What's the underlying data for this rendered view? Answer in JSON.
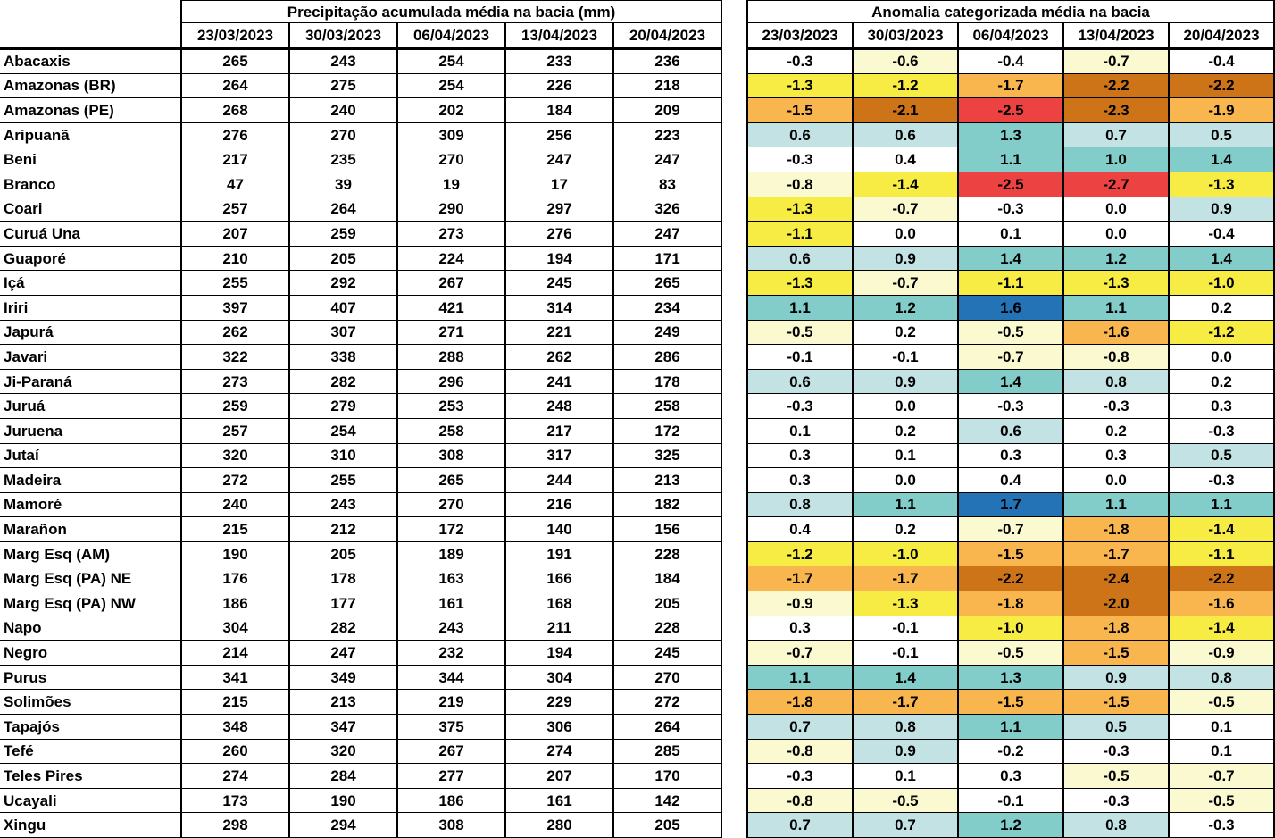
{
  "chart_data": {
    "type": "table",
    "precip_table": {
      "title": "Precipitação acumulada média na bacia (mm)",
      "columns": [
        "23/03/2023",
        "30/03/2023",
        "06/04/2023",
        "13/04/2023",
        "20/04/2023"
      ]
    },
    "anomaly_table": {
      "title": "Anomalia categorizada média na bacia",
      "columns": [
        "23/03/2023",
        "30/03/2023",
        "06/04/2023",
        "13/04/2023",
        "20/04/2023"
      ]
    },
    "basins": [
      {
        "name": "Abacaxis",
        "precip": [
          265,
          243,
          254,
          233,
          236
        ],
        "anomaly": [
          "-0.3",
          "-0.6",
          "-0.4",
          "-0.7",
          "-0.4"
        ]
      },
      {
        "name": "Amazonas (BR)",
        "precip": [
          264,
          275,
          254,
          226,
          218
        ],
        "anomaly": [
          "-1.3",
          "-1.2",
          "-1.7",
          "-2.2",
          "-2.2"
        ]
      },
      {
        "name": "Amazonas (PE)",
        "precip": [
          268,
          240,
          202,
          184,
          209
        ],
        "anomaly": [
          "-1.5",
          "-2.1",
          "-2.5",
          "-2.3",
          "-1.9"
        ]
      },
      {
        "name": "Aripuanã",
        "precip": [
          276,
          270,
          309,
          256,
          223
        ],
        "anomaly": [
          "0.6",
          "0.6",
          "1.3",
          "0.7",
          "0.5"
        ]
      },
      {
        "name": "Beni",
        "precip": [
          217,
          235,
          270,
          247,
          247
        ],
        "anomaly": [
          "-0.3",
          "0.4",
          "1.1",
          "1.0",
          "1.4"
        ]
      },
      {
        "name": "Branco",
        "precip": [
          47,
          39,
          19,
          17,
          83
        ],
        "anomaly": [
          "-0.8",
          "-1.4",
          "-2.5",
          "-2.7",
          "-1.3"
        ]
      },
      {
        "name": "Coari",
        "precip": [
          257,
          264,
          290,
          297,
          326
        ],
        "anomaly": [
          "-1.3",
          "-0.7",
          "-0.3",
          "0.0",
          "0.9"
        ]
      },
      {
        "name": "Curuá Una",
        "precip": [
          207,
          259,
          273,
          276,
          247
        ],
        "anomaly": [
          "-1.1",
          "0.0",
          "0.1",
          "0.0",
          "-0.4"
        ]
      },
      {
        "name": "Guaporé",
        "precip": [
          210,
          205,
          224,
          194,
          171
        ],
        "anomaly": [
          "0.6",
          "0.9",
          "1.4",
          "1.2",
          "1.4"
        ]
      },
      {
        "name": "Içá",
        "precip": [
          255,
          292,
          267,
          245,
          265
        ],
        "anomaly": [
          "-1.3",
          "-0.7",
          "-1.1",
          "-1.3",
          "-1.0"
        ]
      },
      {
        "name": "Iriri",
        "precip": [
          397,
          407,
          421,
          314,
          234
        ],
        "anomaly": [
          "1.1",
          "1.2",
          "1.6",
          "1.1",
          "0.2"
        ]
      },
      {
        "name": "Japurá",
        "precip": [
          262,
          307,
          271,
          221,
          249
        ],
        "anomaly": [
          "-0.5",
          "0.2",
          "-0.5",
          "-1.6",
          "-1.2"
        ]
      },
      {
        "name": "Javari",
        "precip": [
          322,
          338,
          288,
          262,
          286
        ],
        "anomaly": [
          "-0.1",
          "-0.1",
          "-0.7",
          "-0.8",
          "0.0"
        ]
      },
      {
        "name": "Ji-Paraná",
        "precip": [
          273,
          282,
          296,
          241,
          178
        ],
        "anomaly": [
          "0.6",
          "0.9",
          "1.4",
          "0.8",
          "0.2"
        ]
      },
      {
        "name": "Juruá",
        "precip": [
          259,
          279,
          253,
          248,
          258
        ],
        "anomaly": [
          "-0.3",
          "0.0",
          "-0.3",
          "-0.3",
          "0.3"
        ]
      },
      {
        "name": "Juruena",
        "precip": [
          257,
          254,
          258,
          217,
          172
        ],
        "anomaly": [
          "0.1",
          "0.2",
          "0.6",
          "0.2",
          "-0.3"
        ]
      },
      {
        "name": "Jutaí",
        "precip": [
          320,
          310,
          308,
          317,
          325
        ],
        "anomaly": [
          "0.3",
          "0.1",
          "0.3",
          "0.3",
          "0.5"
        ]
      },
      {
        "name": "Madeira",
        "precip": [
          272,
          255,
          265,
          244,
          213
        ],
        "anomaly": [
          "0.3",
          "0.0",
          "0.4",
          "0.0",
          "-0.3"
        ]
      },
      {
        "name": "Mamoré",
        "precip": [
          240,
          243,
          270,
          216,
          182
        ],
        "anomaly": [
          "0.8",
          "1.1",
          "1.7",
          "1.1",
          "1.1"
        ]
      },
      {
        "name": "Marañon",
        "precip": [
          215,
          212,
          172,
          140,
          156
        ],
        "anomaly": [
          "0.4",
          "0.2",
          "-0.7",
          "-1.8",
          "-1.4"
        ]
      },
      {
        "name": "Marg Esq (AM)",
        "precip": [
          190,
          205,
          189,
          191,
          228
        ],
        "anomaly": [
          "-1.2",
          "-1.0",
          "-1.5",
          "-1.7",
          "-1.1"
        ]
      },
      {
        "name": "Marg Esq (PA) NE",
        "precip": [
          176,
          178,
          163,
          166,
          184
        ],
        "anomaly": [
          "-1.7",
          "-1.7",
          "-2.2",
          "-2.4",
          "-2.2"
        ]
      },
      {
        "name": "Marg Esq (PA) NW",
        "precip": [
          186,
          177,
          161,
          168,
          205
        ],
        "anomaly": [
          "-0.9",
          "-1.3",
          "-1.8",
          "-2.0",
          "-1.6"
        ]
      },
      {
        "name": "Napo",
        "precip": [
          304,
          282,
          243,
          211,
          228
        ],
        "anomaly": [
          "0.3",
          "-0.1",
          "-1.0",
          "-1.8",
          "-1.4"
        ]
      },
      {
        "name": "Negro",
        "precip": [
          214,
          247,
          232,
          194,
          245
        ],
        "anomaly": [
          "-0.7",
          "-0.1",
          "-0.5",
          "-1.5",
          "-0.9"
        ]
      },
      {
        "name": "Purus",
        "precip": [
          341,
          349,
          344,
          304,
          270
        ],
        "anomaly": [
          "1.1",
          "1.4",
          "1.3",
          "0.9",
          "0.8"
        ]
      },
      {
        "name": "Solimões",
        "precip": [
          215,
          213,
          219,
          229,
          272
        ],
        "anomaly": [
          "-1.8",
          "-1.7",
          "-1.5",
          "-1.5",
          "-0.5"
        ]
      },
      {
        "name": "Tapajós",
        "precip": [
          348,
          347,
          375,
          306,
          264
        ],
        "anomaly": [
          "0.7",
          "0.8",
          "1.1",
          "0.5",
          "0.1"
        ]
      },
      {
        "name": "Tefé",
        "precip": [
          260,
          320,
          267,
          274,
          285
        ],
        "anomaly": [
          "-0.8",
          "0.9",
          "-0.2",
          "-0.3",
          "0.1"
        ]
      },
      {
        "name": "Teles Pires",
        "precip": [
          274,
          284,
          277,
          207,
          170
        ],
        "anomaly": [
          "-0.3",
          "0.1",
          "0.3",
          "-0.5",
          "-0.7"
        ]
      },
      {
        "name": "Ucayali",
        "precip": [
          173,
          190,
          186,
          161,
          142
        ],
        "anomaly": [
          "-0.8",
          "-0.5",
          "-0.1",
          "-0.3",
          "-0.5"
        ]
      },
      {
        "name": "Xingu",
        "precip": [
          298,
          294,
          308,
          280,
          205
        ],
        "anomaly": [
          "0.7",
          "0.7",
          "1.2",
          "0.8",
          "-0.3"
        ]
      }
    ],
    "anomaly_color_scale": [
      {
        "min_value": 1.45,
        "color": "#2473B7",
        "name": "very-high-positive-blue"
      },
      {
        "min_value": 0.95,
        "color": "#82CDC9",
        "name": "high-positive-teal"
      },
      {
        "min_value": 0.45,
        "color": "#C3E2E3",
        "name": "positive-light-teal"
      },
      {
        "min_value": -0.45,
        "color": "#FFFFFF",
        "name": "neutral-white"
      },
      {
        "min_value": -0.95,
        "color": "#FBF9D0",
        "name": "weak-negative-cream"
      },
      {
        "min_value": -1.45,
        "color": "#F7EC44",
        "name": "negative-yellow"
      },
      {
        "min_value": -1.95,
        "color": "#F9B64F",
        "name": "moderate-negative-orange"
      },
      {
        "min_value": -2.45,
        "color": "#CE7418",
        "name": "strong-negative-brown"
      },
      {
        "min_value": -99,
        "color": "#EC4241",
        "name": "extreme-negative-red"
      }
    ]
  }
}
